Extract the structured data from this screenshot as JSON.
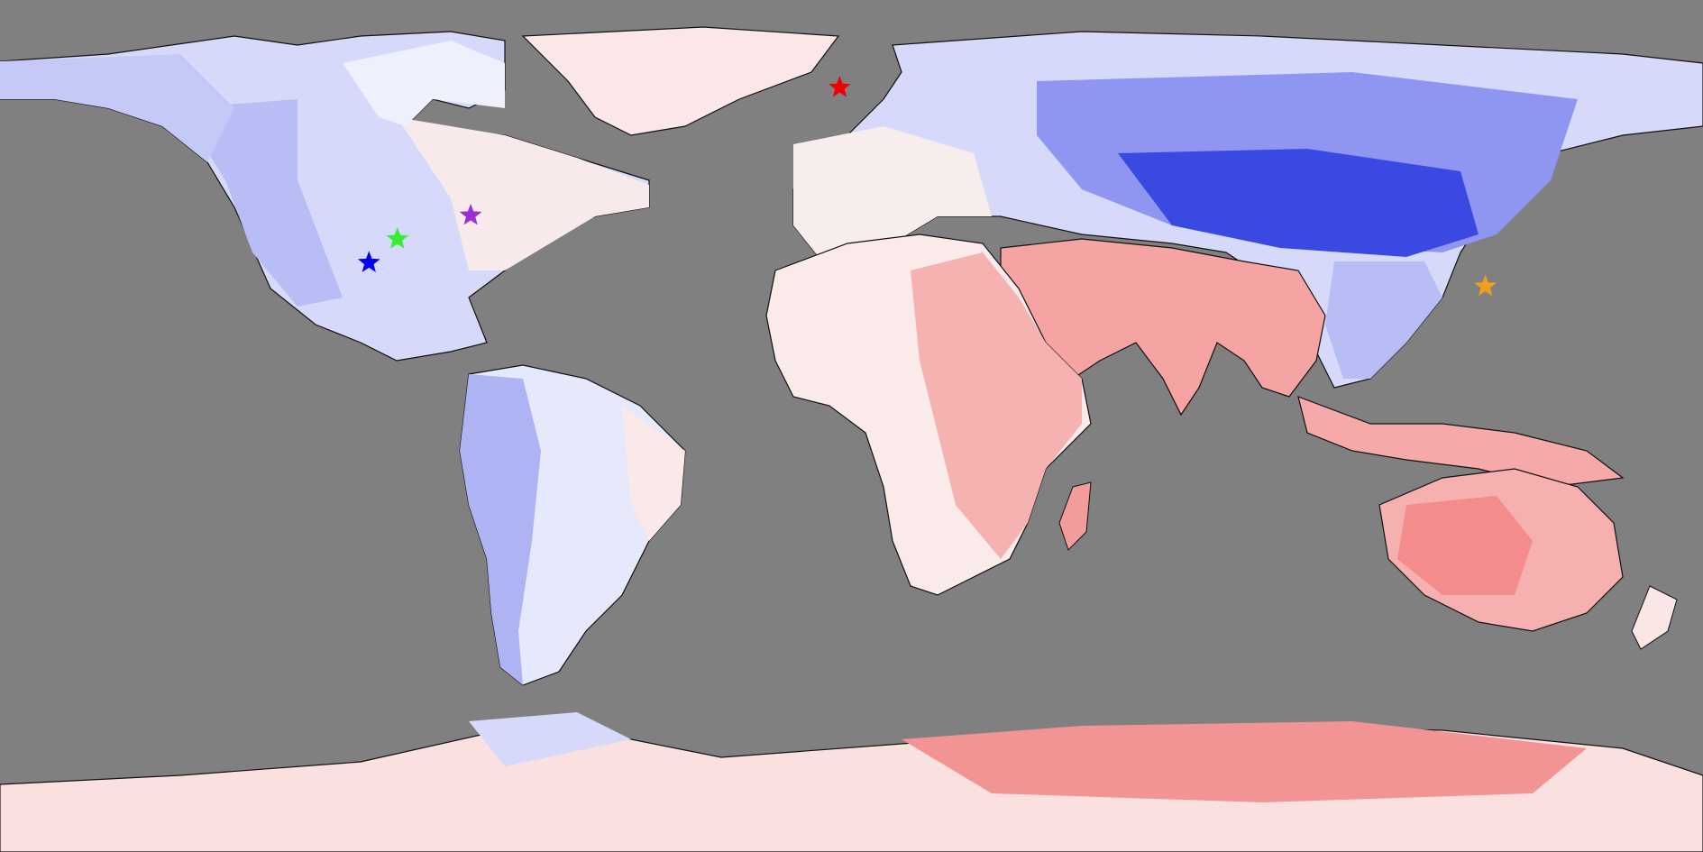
{
  "map": {
    "projection": "equirectangular",
    "ocean_color": "#808080",
    "colors": {
      "strong_cold": "#2f3fe0",
      "cold": "#7f87f0",
      "cool": "#b8bdf6",
      "slightly_cool": "#e3e5fb",
      "neutral": "#fbf6f6",
      "slightly_warm": "#fbe0e0",
      "warm": "#f8b8b8",
      "hot": "#f39090"
    },
    "markers": [
      {
        "name": "blue-star",
        "color": "#0000ee",
        "lon": -102.0,
        "lat": 34.5
      },
      {
        "name": "green-star",
        "color": "#33ee33",
        "lon": -96.0,
        "lat": 39.5
      },
      {
        "name": "purple-star",
        "color": "#9a2fd6",
        "lon": -80.5,
        "lat": 44.5
      },
      {
        "name": "red-star",
        "color": "#ee0000",
        "lon": -2.5,
        "lat": 71.5
      },
      {
        "name": "orange-star",
        "color": "#f0a020",
        "lon": 134.0,
        "lat": 29.5
      }
    ]
  }
}
